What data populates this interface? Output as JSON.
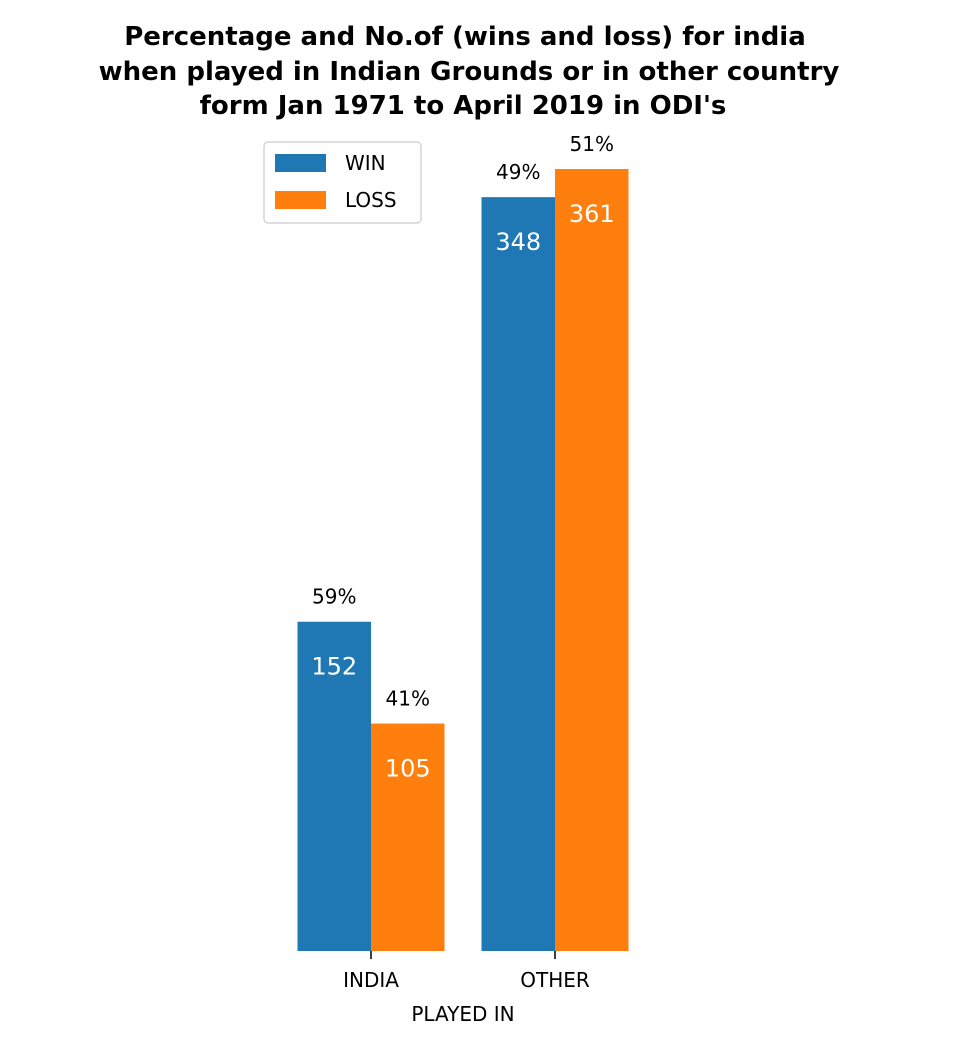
{
  "chart_data": {
    "type": "bar",
    "title_lines": [
      "Percentage and No.of (wins and loss) for india",
      "when played in Indian Grounds or in other country",
      "form Jan 1971 to April 2019 in ODI's"
    ],
    "xlabel": "PLAYED IN",
    "ylabel": "",
    "categories": [
      "INDIA",
      "OTHER"
    ],
    "series": [
      {
        "name": "WIN",
        "color": "#1f77b4",
        "values": [
          152,
          348
        ],
        "percent_labels": [
          "59%",
          "49%"
        ]
      },
      {
        "name": "LOSS",
        "color": "#ff7f0e",
        "values": [
          105,
          361
        ],
        "percent_labels": [
          "41%",
          "51%"
        ]
      }
    ],
    "ylim": [
      0,
      361
    ],
    "legend_position": "upper-left",
    "grid": false
  }
}
